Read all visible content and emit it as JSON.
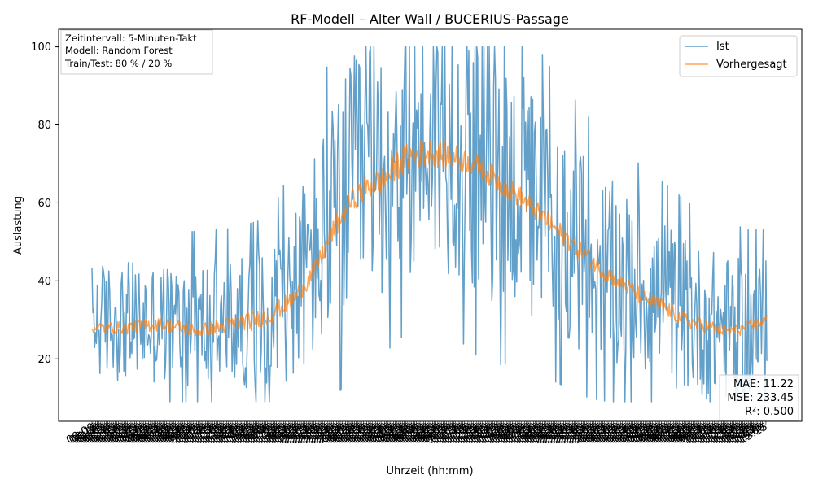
{
  "chart_data": {
    "type": "line",
    "title": "RF-Modell – Alter Wall / BUCERIUS-Passage",
    "xlabel": "Uhrzeit (hh:mm)",
    "ylabel": "Auslastung",
    "ylim": [
      4,
      104.5
    ],
    "yticks": [
      20,
      40,
      60,
      80,
      100
    ],
    "grid": false,
    "legend_position": "upper-right",
    "x_time_range": [
      "00:00",
      "23:55"
    ],
    "x_step_minutes": 5,
    "info_lines": [
      "Zeitintervall: 5-Minuten-Takt",
      "Modell: Random Forest",
      "Train/Test: 80 % / 20 %"
    ],
    "metrics": [
      "MAE: 11.22",
      "MSE: 233.45",
      "R²: 0.500"
    ],
    "series": [
      {
        "name": "Ist",
        "color": "#1f77b4",
        "opacity": 0.7,
        "profile": [
          [
            0,
            30
          ],
          [
            90,
            29
          ],
          [
            160,
            29
          ],
          [
            200,
            31
          ],
          [
            230,
            38
          ],
          [
            260,
            50
          ],
          [
            290,
            62
          ],
          [
            320,
            70
          ],
          [
            350,
            76
          ],
          [
            380,
            78
          ],
          [
            410,
            76
          ],
          [
            440,
            70
          ],
          [
            470,
            66
          ],
          [
            500,
            58
          ],
          [
            530,
            52
          ],
          [
            560,
            46
          ],
          [
            590,
            42
          ],
          [
            620,
            38
          ],
          [
            650,
            34
          ],
          [
            680,
            30
          ],
          [
            710,
            28
          ],
          [
            740,
            27
          ],
          [
            761,
            28
          ]
        ],
        "noise_amplitude": [
          [
            0,
            12
          ],
          [
            200,
            14
          ],
          [
            250,
            22
          ],
          [
            300,
            28
          ],
          [
            450,
            28
          ],
          [
            520,
            22
          ],
          [
            600,
            18
          ],
          [
            761,
            14
          ]
        ],
        "range": [
          9,
          100
        ]
      },
      {
        "name": "Vorhergesagt",
        "color": "#ff7f0e",
        "opacity": 0.7,
        "profile": [
          [
            0,
            28
          ],
          [
            40,
            28
          ],
          [
            80,
            29
          ],
          [
            120,
            27
          ],
          [
            160,
            29
          ],
          [
            200,
            31
          ],
          [
            230,
            36
          ],
          [
            250,
            42
          ],
          [
            270,
            52
          ],
          [
            290,
            60
          ],
          [
            310,
            64
          ],
          [
            330,
            66
          ],
          [
            345,
            70
          ],
          [
            360,
            72
          ],
          [
            380,
            73
          ],
          [
            400,
            72
          ],
          [
            420,
            71
          ],
          [
            440,
            69
          ],
          [
            460,
            65
          ],
          [
            480,
            62
          ],
          [
            500,
            58
          ],
          [
            520,
            54
          ],
          [
            540,
            50
          ],
          [
            560,
            46
          ],
          [
            580,
            42
          ],
          [
            600,
            39
          ],
          [
            620,
            36
          ],
          [
            640,
            34
          ],
          [
            660,
            31
          ],
          [
            680,
            29
          ],
          [
            700,
            28
          ],
          [
            720,
            27
          ],
          [
            740,
            28
          ],
          [
            761,
            30
          ]
        ],
        "noise_amplitude": [
          [
            0,
            1.5
          ],
          [
            250,
            2.5
          ],
          [
            350,
            4
          ],
          [
            450,
            3
          ],
          [
            761,
            1.5
          ]
        ],
        "range": [
          26,
          78
        ]
      }
    ]
  }
}
